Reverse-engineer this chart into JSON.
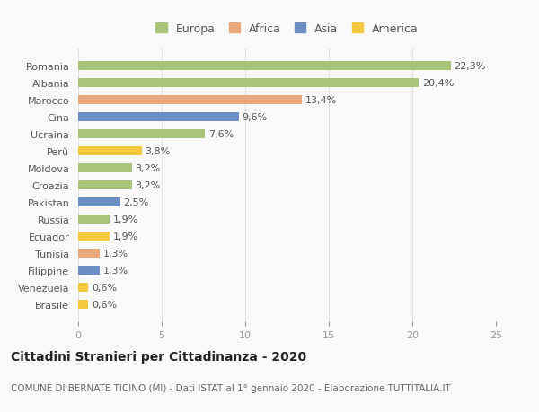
{
  "categories": [
    "Romania",
    "Albania",
    "Marocco",
    "Cina",
    "Ucraina",
    "Perù",
    "Moldova",
    "Croazia",
    "Pakistan",
    "Russia",
    "Ecuador",
    "Tunisia",
    "Filippine",
    "Venezuela",
    "Brasile"
  ],
  "values": [
    22.3,
    20.4,
    13.4,
    9.6,
    7.6,
    3.8,
    3.2,
    3.2,
    2.5,
    1.9,
    1.9,
    1.3,
    1.3,
    0.6,
    0.6
  ],
  "labels": [
    "22,3%",
    "20,4%",
    "13,4%",
    "9,6%",
    "7,6%",
    "3,8%",
    "3,2%",
    "3,2%",
    "2,5%",
    "1,9%",
    "1,9%",
    "1,3%",
    "1,3%",
    "0,6%",
    "0,6%"
  ],
  "continents": [
    "Europa",
    "Europa",
    "Africa",
    "Asia",
    "Europa",
    "America",
    "Europa",
    "Europa",
    "Asia",
    "Europa",
    "America",
    "Africa",
    "Asia",
    "America",
    "America"
  ],
  "continent_colors": {
    "Europa": "#a8c47a",
    "Africa": "#e8a87c",
    "Asia": "#6b8ec4",
    "America": "#f5c842"
  },
  "legend_order": [
    "Europa",
    "Africa",
    "Asia",
    "America"
  ],
  "xlim": [
    0,
    25
  ],
  "xticks": [
    0,
    5,
    10,
    15,
    20,
    25
  ],
  "title": "Cittadini Stranieri per Cittadinanza - 2020",
  "subtitle": "COMUNE DI BERNATE TICINO (MI) - Dati ISTAT al 1° gennaio 2020 - Elaborazione TUTTITALIA.IT",
  "background_color": "#f9f9f9",
  "grid_color": "#e0e0e0",
  "bar_height": 0.55,
  "title_fontsize": 10,
  "subtitle_fontsize": 7.5,
  "label_fontsize": 8,
  "tick_fontsize": 8,
  "legend_fontsize": 9
}
